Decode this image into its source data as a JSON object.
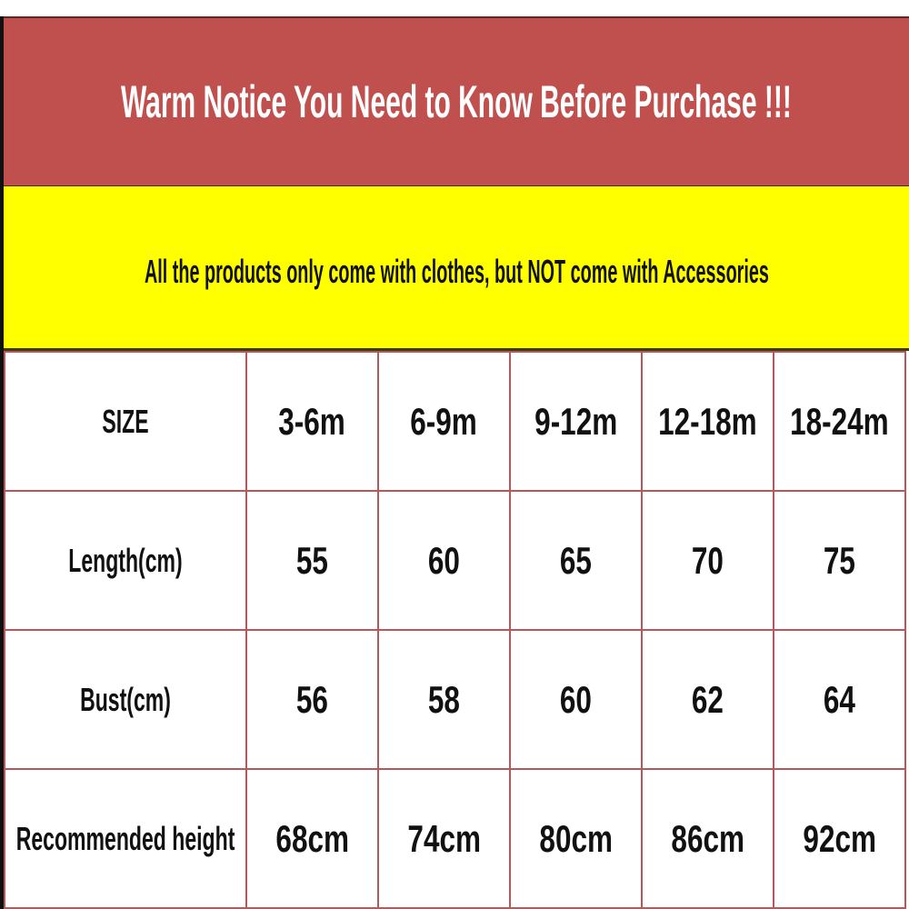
{
  "title": "Warm Notice You Need to Know Before Purchase !!!",
  "notice": "All the products only come with clothes, but NOT come with Accessories",
  "colors": {
    "banner": "#c0504d",
    "notice": "#ffff00",
    "grid": "#b5585a"
  },
  "table": {
    "header": [
      "SIZE",
      "3-6m",
      "6-9m",
      "9-12m",
      "12-18m",
      "18-24m"
    ],
    "rows": [
      [
        "Length(cm)",
        "55",
        "60",
        "65",
        "70",
        "75"
      ],
      [
        "Bust(cm)",
        "56",
        "58",
        "60",
        "62",
        "64"
      ],
      [
        "Recommended height",
        "68cm",
        "74cm",
        "80cm",
        "86cm",
        "92cm"
      ]
    ]
  }
}
